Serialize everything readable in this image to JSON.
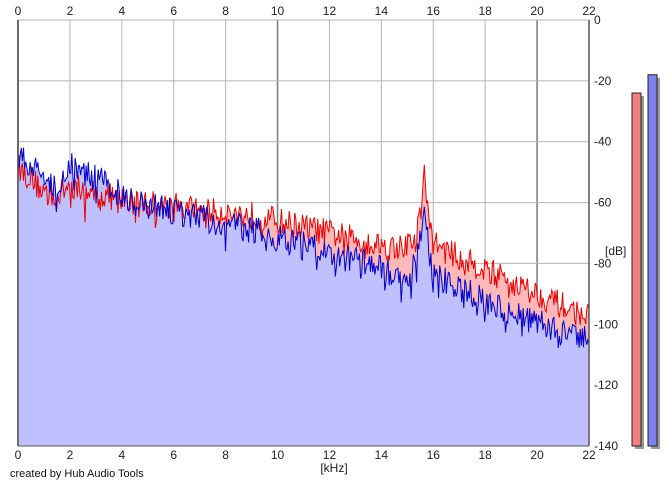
{
  "chart_data": {
    "type": "area",
    "xlabel": "[kHz]",
    "ylabel": "[dB]",
    "xlim": [
      0,
      22
    ],
    "ylim": [
      -140,
      0
    ],
    "x_ticks": [
      0,
      2,
      4,
      6,
      8,
      10,
      12,
      14,
      16,
      18,
      20,
      22
    ],
    "y_ticks": [
      0,
      -20,
      -40,
      -60,
      -80,
      -100,
      -120,
      -140
    ],
    "grid": true,
    "credit": "created by Hub Audio Tools",
    "series": [
      {
        "color": "#e80000",
        "fill_color": "#ffb8b8",
        "points": [
          [
            0,
            -48
          ],
          [
            0.2,
            -50
          ],
          [
            0.5,
            -52
          ],
          [
            0.8,
            -55
          ],
          [
            1,
            -56
          ],
          [
            1.5,
            -58
          ],
          [
            2,
            -54
          ],
          [
            2.5,
            -56
          ],
          [
            3,
            -57
          ],
          [
            3.5,
            -58
          ],
          [
            4,
            -59
          ],
          [
            4.5,
            -60
          ],
          [
            5,
            -60
          ],
          [
            5.5,
            -61
          ],
          [
            6,
            -61
          ],
          [
            6.5,
            -62
          ],
          [
            7,
            -62
          ],
          [
            7.5,
            -63
          ],
          [
            8,
            -63
          ],
          [
            8.5,
            -64
          ],
          [
            9,
            -64
          ],
          [
            9.5,
            -65
          ],
          [
            10,
            -66
          ],
          [
            10.5,
            -67
          ],
          [
            11,
            -68
          ],
          [
            11.5,
            -69
          ],
          [
            12,
            -70
          ],
          [
            12.5,
            -71
          ],
          [
            13,
            -72
          ],
          [
            13.5,
            -73
          ],
          [
            14,
            -74
          ],
          [
            14.5,
            -75
          ],
          [
            15,
            -74
          ],
          [
            15.3,
            -72
          ],
          [
            15.55,
            -62
          ],
          [
            15.65,
            -47
          ],
          [
            15.75,
            -62
          ],
          [
            16,
            -73
          ],
          [
            16.5,
            -76
          ],
          [
            17,
            -78
          ],
          [
            17.5,
            -80
          ],
          [
            18,
            -82
          ],
          [
            18.5,
            -84
          ],
          [
            19,
            -86
          ],
          [
            19.5,
            -88
          ],
          [
            20,
            -90
          ],
          [
            20.5,
            -92
          ],
          [
            21,
            -94
          ],
          [
            21.5,
            -96
          ],
          [
            22,
            -98
          ]
        ]
      },
      {
        "color": "#0000c8",
        "fill_color": "#c0c0ff",
        "points": [
          [
            0,
            -44
          ],
          [
            0.2,
            -46
          ],
          [
            0.5,
            -48
          ],
          [
            0.8,
            -50
          ],
          [
            1,
            -52
          ],
          [
            1.5,
            -55
          ],
          [
            2,
            -47
          ],
          [
            2.5,
            -50
          ],
          [
            3,
            -52
          ],
          [
            3.5,
            -54
          ],
          [
            4,
            -58
          ],
          [
            4.5,
            -60
          ],
          [
            5,
            -61
          ],
          [
            5.5,
            -62
          ],
          [
            6,
            -63
          ],
          [
            6.5,
            -64
          ],
          [
            7,
            -65
          ],
          [
            7.5,
            -66
          ],
          [
            8,
            -67
          ],
          [
            8.5,
            -68
          ],
          [
            9,
            -69
          ],
          [
            9.5,
            -70
          ],
          [
            10,
            -72
          ],
          [
            10.5,
            -73
          ],
          [
            11,
            -74
          ],
          [
            11.5,
            -75
          ],
          [
            12,
            -76
          ],
          [
            12.5,
            -78
          ],
          [
            13,
            -79
          ],
          [
            13.5,
            -80
          ],
          [
            14,
            -82
          ],
          [
            14.5,
            -84
          ],
          [
            15,
            -84
          ],
          [
            15.3,
            -80
          ],
          [
            15.55,
            -70
          ],
          [
            15.65,
            -61
          ],
          [
            15.75,
            -70
          ],
          [
            16,
            -83
          ],
          [
            16.5,
            -86
          ],
          [
            17,
            -88
          ],
          [
            17.5,
            -90
          ],
          [
            18,
            -92
          ],
          [
            18.5,
            -94
          ],
          [
            19,
            -96
          ],
          [
            19.5,
            -98
          ],
          [
            20,
            -99
          ],
          [
            20.5,
            -101
          ],
          [
            21,
            -103
          ],
          [
            21.5,
            -105
          ],
          [
            22,
            -105
          ]
        ]
      }
    ],
    "level_meters": [
      {
        "value_db": -24,
        "color": "#f08080"
      },
      {
        "value_db": -18,
        "color": "#8080f0"
      }
    ]
  }
}
